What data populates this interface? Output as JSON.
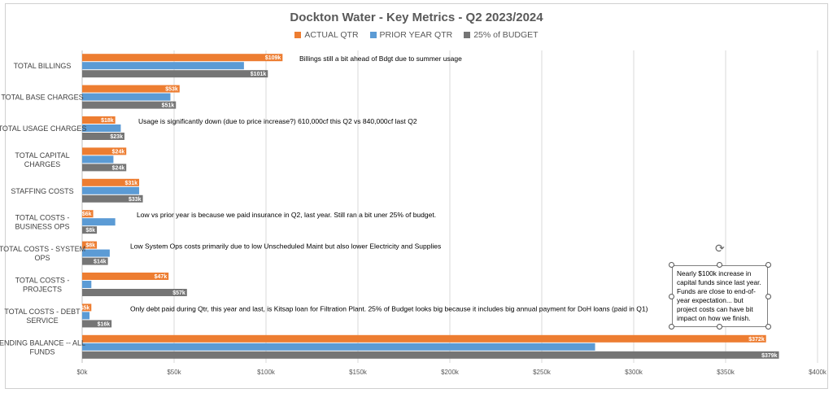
{
  "chart_data": {
    "type": "bar",
    "orientation": "horizontal",
    "title": "Dockton Water - Key Metrics - Q2 2023/2024",
    "categories": [
      "TOTAL BILLINGS",
      "TOTAL BASE CHARGES",
      "TOTAL USAGE CHARGES",
      "TOTAL CAPITAL CHARGES",
      "STAFFING COSTS",
      "TOTAL COSTS - BUSINESS OPS",
      "TOTAL COSTS - SYSTEM OPS",
      "TOTAL COSTS - PROJECTS",
      "TOTAL COSTS - DEBT SERVICE",
      "ENDING BALANCE -- ALL FUNDS"
    ],
    "category_lines": [
      [
        "TOTAL BILLINGS"
      ],
      [
        "TOTAL BASE CHARGES"
      ],
      [
        "TOTAL USAGE CHARGES"
      ],
      [
        "TOTAL CAPITAL",
        "CHARGES"
      ],
      [
        "STAFFING COSTS"
      ],
      [
        "TOTAL COSTS -",
        "BUSINESS OPS"
      ],
      [
        "TOTAL COSTS - SYSTEM",
        "OPS"
      ],
      [
        "TOTAL COSTS -",
        "PROJECTS"
      ],
      [
        "TOTAL COSTS - DEBT",
        "SERVICE"
      ],
      [
        "ENDING BALANCE -- ALL",
        "FUNDS"
      ]
    ],
    "series": [
      {
        "name": "ACTUAL QTR",
        "color": "#ED7D31",
        "values": [
          109,
          53,
          18,
          24,
          31,
          6,
          8,
          47,
          5,
          372
        ],
        "labels": [
          "$109k",
          "$53k",
          "$18k",
          "$24k",
          "$31k",
          "$6k",
          "$8k",
          "$47k",
          "$5k",
          "$372k"
        ]
      },
      {
        "name": "PRIOR YEAR QTR",
        "color": "#5B9BD5",
        "values": [
          88,
          48,
          21,
          17,
          31,
          18,
          15,
          5,
          4,
          279
        ],
        "labels": []
      },
      {
        "name": "25% of BUDGET",
        "color": "#757575",
        "values": [
          101,
          51,
          23,
          24,
          33,
          8,
          14,
          57,
          16,
          379
        ],
        "labels": [
          "$101k",
          "$51k",
          "$23k",
          "$24k",
          "$33k",
          "$8k",
          "$14k",
          "$57k",
          "$16k",
          "$379k"
        ]
      }
    ],
    "xlim": [
      0,
      400
    ],
    "xticks": [
      "$0k",
      "$50k",
      "$100k",
      "$150k",
      "$200k",
      "$250k",
      "$300k",
      "$350k",
      "$400k"
    ],
    "grid": true,
    "legend": "top-center",
    "annotations": [
      {
        "category_index": 0,
        "text": "Billings still a bit ahead of Bdgt due to summer usage"
      },
      {
        "category_index": 2,
        "text": "Usage is significantly down (due to price increase?)  610,000cf this Q2 vs 840,000cf last Q2"
      },
      {
        "category_index": 5,
        "text": "Low vs prior year is because we paid insurance in Q2, last year.  Still ran a bit uner 25% of budget."
      },
      {
        "category_index": 6,
        "text": "Low System Ops costs primarily due to low Unscheduled Maint but also lower Electricity and Supplies"
      },
      {
        "category_index": 8,
        "text": "Only debt paid during Qtr, this year and last, is Kitsap loan for Filtration Plant.  25% of Budget looks big because it includes big annual payment for DoH loans (paid in Q1)"
      }
    ],
    "callout": "Nearly $100k increase in capital funds since last year. Funds are close to end-of-year expectation... but project costs can have bit impact on how we finish."
  }
}
